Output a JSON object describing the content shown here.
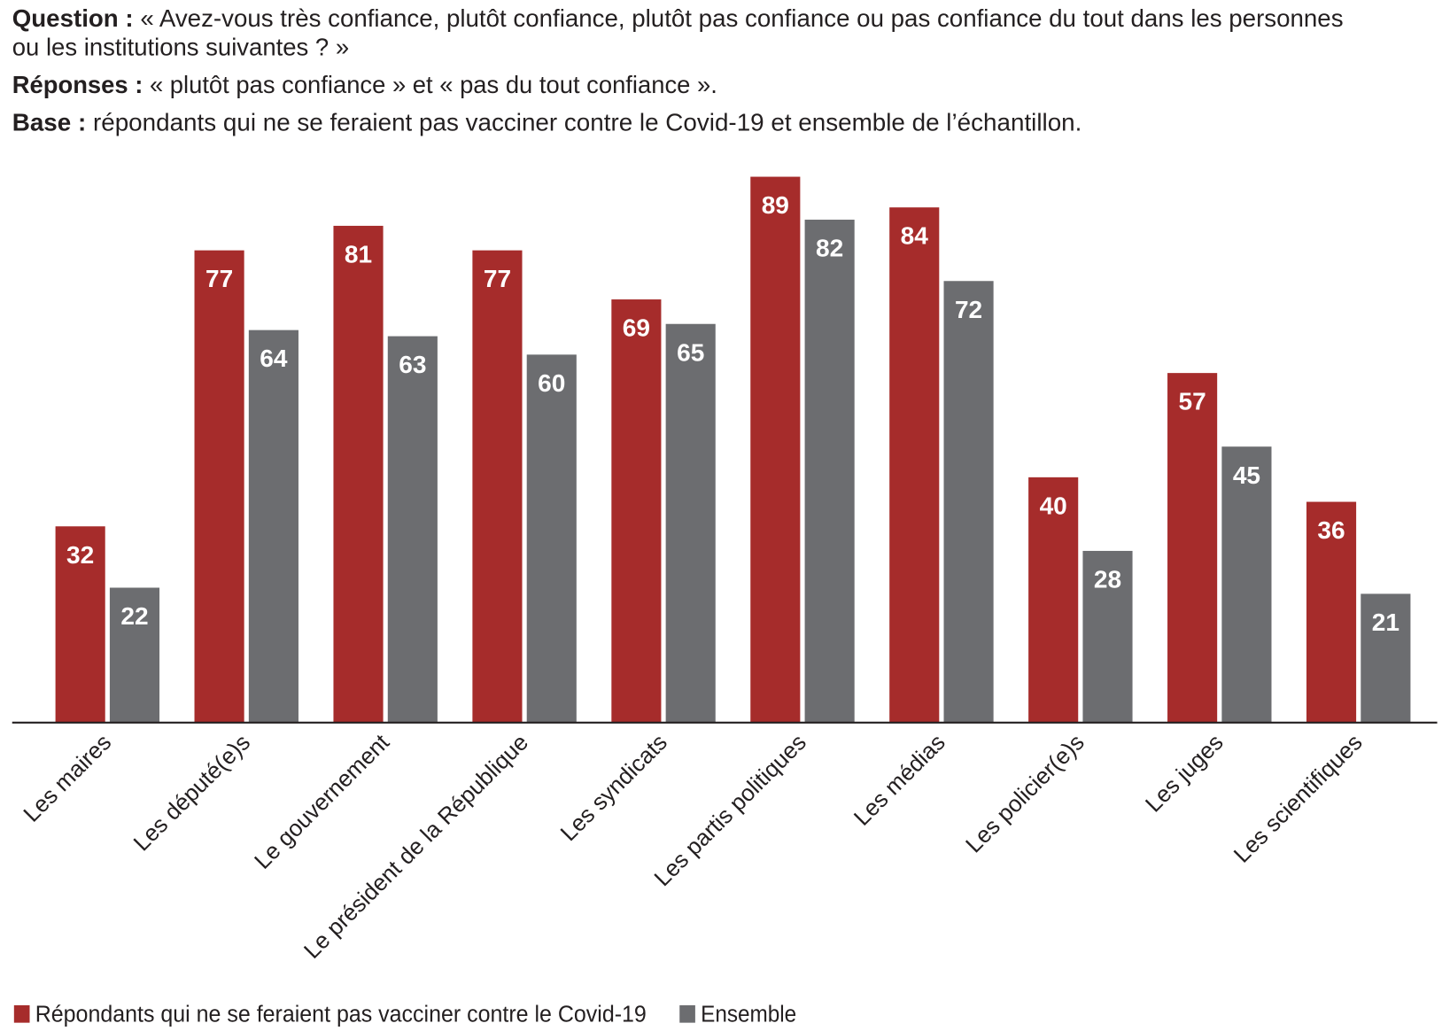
{
  "header": {
    "question_label": "Question :",
    "question_line1": " « Avez-vous très confiance, plutôt confiance, plutôt pas confiance ou pas confiance du tout dans les personnes",
    "question_line2": "ou les institutions suivantes ? »",
    "responses_label": "Réponses :",
    "responses_text": " « plutôt pas confiance » et « pas du tout confiance ».",
    "base_label": "Base :",
    "base_text": " répondants qui ne se feraient pas vacciner contre le Covid-19 et ensemble de l’échantillon."
  },
  "chart_data": {
    "type": "bar",
    "title": "",
    "xlabel": "",
    "ylabel": "",
    "ylim": [
      0,
      89
    ],
    "grid": false,
    "legend_position": "bottom-left",
    "categories": [
      "Les maires",
      "Les député(e)s",
      "Le gouvernement",
      "Le président de la République",
      "Les syndicats",
      "Les partis politiques",
      "Les médias",
      "Les policier(e)s",
      "Les juges",
      "Les scientifiques"
    ],
    "series": [
      {
        "name": "Répondants qui ne se feraient pas vacciner contre le Covid-19",
        "color": "#a62c2b",
        "values": [
          32,
          77,
          81,
          77,
          69,
          89,
          84,
          40,
          57,
          36
        ]
      },
      {
        "name": "Ensemble",
        "color": "#6c6d70",
        "values": [
          22,
          64,
          63,
          60,
          65,
          82,
          72,
          28,
          45,
          21
        ]
      }
    ]
  }
}
